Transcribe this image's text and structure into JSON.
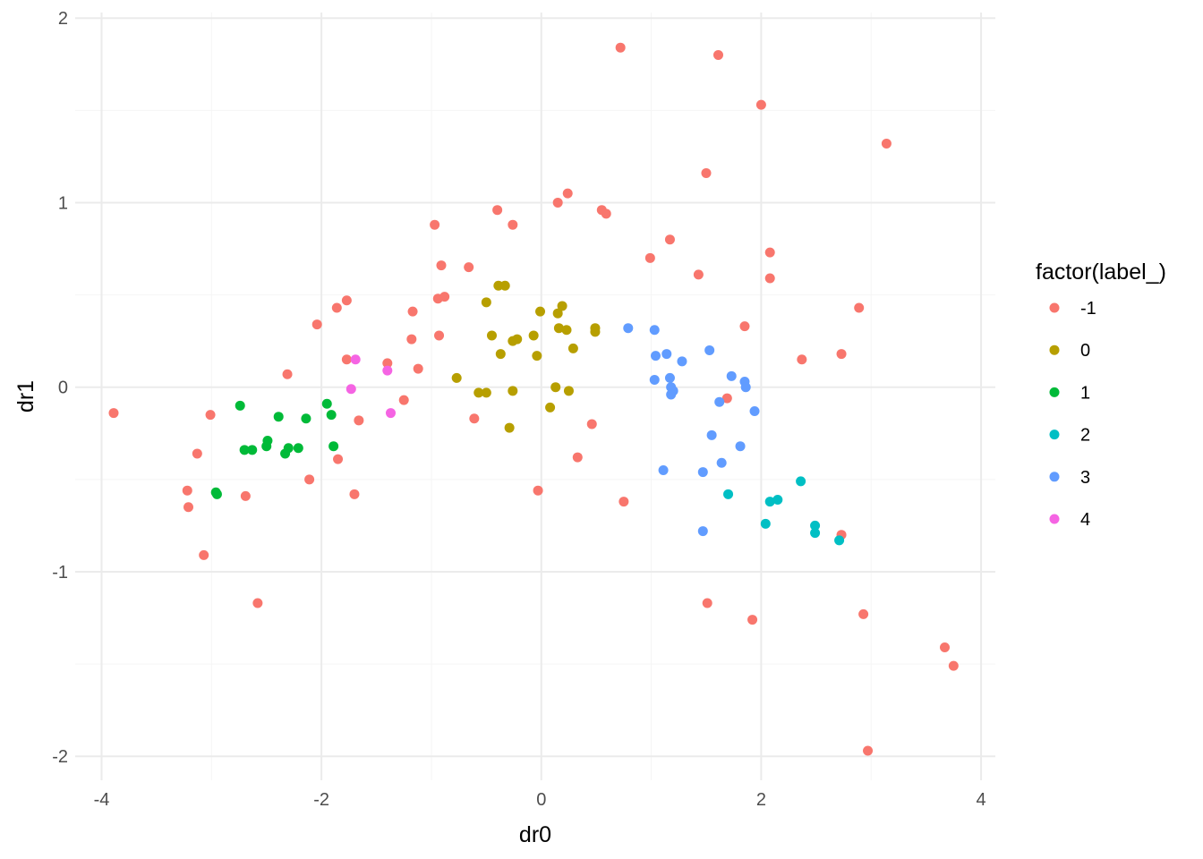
{
  "chart_data": {
    "type": "scatter",
    "title": "",
    "xlabel": "dr0",
    "ylabel": "dr1",
    "xlim": [
      -4.24,
      4.13
    ],
    "ylim": [
      -2.13,
      2.03
    ],
    "xticks": [
      -4,
      -2,
      0,
      2,
      4
    ],
    "yticks": [
      -2,
      -1,
      0,
      1,
      2
    ],
    "grid": true,
    "legend": {
      "title": "factor(label_)",
      "position": "right"
    },
    "series": [
      {
        "name": "-1",
        "color": "#F8766D",
        "points": [
          [
            0.72,
            1.84
          ],
          [
            1.61,
            1.8
          ],
          [
            2.0,
            1.53
          ],
          [
            3.14,
            1.32
          ],
          [
            1.5,
            1.16
          ],
          [
            0.24,
            1.05
          ],
          [
            0.15,
            1.0
          ],
          [
            -0.4,
            0.96
          ],
          [
            0.55,
            0.96
          ],
          [
            0.59,
            0.94
          ],
          [
            -0.97,
            0.88
          ],
          [
            -0.26,
            0.88
          ],
          [
            1.17,
            0.8
          ],
          [
            2.08,
            0.73
          ],
          [
            0.99,
            0.7
          ],
          [
            -0.91,
            0.66
          ],
          [
            -0.66,
            0.65
          ],
          [
            1.43,
            0.61
          ],
          [
            2.08,
            0.59
          ],
          [
            -0.94,
            0.48
          ],
          [
            -0.88,
            0.49
          ],
          [
            -1.77,
            0.47
          ],
          [
            -1.86,
            0.43
          ],
          [
            -1.17,
            0.41
          ],
          [
            2.89,
            0.43
          ],
          [
            -2.04,
            0.34
          ],
          [
            1.85,
            0.33
          ],
          [
            -1.18,
            0.26
          ],
          [
            -0.93,
            0.28
          ],
          [
            2.73,
            0.18
          ],
          [
            -1.77,
            0.15
          ],
          [
            2.37,
            0.15
          ],
          [
            -1.4,
            0.13
          ],
          [
            -1.12,
            0.1
          ],
          [
            -2.31,
            0.07
          ],
          [
            -1.25,
            -0.07
          ],
          [
            -3.89,
            -0.14
          ],
          [
            -3.01,
            -0.15
          ],
          [
            1.69,
            -0.06
          ],
          [
            -0.61,
            -0.17
          ],
          [
            -1.66,
            -0.18
          ],
          [
            0.46,
            -0.2
          ],
          [
            -3.13,
            -0.36
          ],
          [
            -1.85,
            -0.39
          ],
          [
            0.33,
            -0.38
          ],
          [
            -2.11,
            -0.5
          ],
          [
            -3.22,
            -0.56
          ],
          [
            -0.03,
            -0.56
          ],
          [
            -2.69,
            -0.59
          ],
          [
            -1.7,
            -0.58
          ],
          [
            -3.21,
            -0.65
          ],
          [
            0.75,
            -0.62
          ],
          [
            2.73,
            -0.8
          ],
          [
            -3.07,
            -0.91
          ],
          [
            -2.58,
            -1.17
          ],
          [
            1.51,
            -1.17
          ],
          [
            1.92,
            -1.26
          ],
          [
            2.93,
            -1.23
          ],
          [
            3.67,
            -1.41
          ],
          [
            3.75,
            -1.51
          ],
          [
            2.97,
            -1.97
          ]
        ]
      },
      {
        "name": "0",
        "color": "#B79F00",
        "points": [
          [
            -0.39,
            0.55
          ],
          [
            -0.33,
            0.55
          ],
          [
            0.19,
            0.44
          ],
          [
            -0.5,
            0.46
          ],
          [
            -0.01,
            0.41
          ],
          [
            0.15,
            0.4
          ],
          [
            0.49,
            0.32
          ],
          [
            0.16,
            0.32
          ],
          [
            0.49,
            0.3
          ],
          [
            0.23,
            0.31
          ],
          [
            -0.45,
            0.28
          ],
          [
            -0.07,
            0.28
          ],
          [
            -0.22,
            0.26
          ],
          [
            -0.26,
            0.25
          ],
          [
            0.29,
            0.21
          ],
          [
            -0.37,
            0.18
          ],
          [
            -0.04,
            0.17
          ],
          [
            -0.77,
            0.05
          ],
          [
            0.13,
            0.0
          ],
          [
            -0.57,
            -0.03
          ],
          [
            -0.5,
            -0.03
          ],
          [
            -0.26,
            -0.02
          ],
          [
            0.25,
            -0.02
          ],
          [
            0.08,
            -0.11
          ],
          [
            -0.29,
            -0.22
          ]
        ]
      },
      {
        "name": "1",
        "color": "#00BA38",
        "points": [
          [
            -2.74,
            -0.1
          ],
          [
            -1.95,
            -0.09
          ],
          [
            -2.39,
            -0.16
          ],
          [
            -1.91,
            -0.15
          ],
          [
            -2.14,
            -0.17
          ],
          [
            -2.49,
            -0.29
          ],
          [
            -2.5,
            -0.32
          ],
          [
            -1.89,
            -0.32
          ],
          [
            -2.7,
            -0.34
          ],
          [
            -2.63,
            -0.34
          ],
          [
            -2.3,
            -0.33
          ],
          [
            -2.21,
            -0.33
          ],
          [
            -2.33,
            -0.36
          ],
          [
            -2.96,
            -0.57
          ],
          [
            -2.95,
            -0.58
          ]
        ]
      },
      {
        "name": "2",
        "color": "#00BFC4",
        "points": [
          [
            2.36,
            -0.51
          ],
          [
            1.7,
            -0.58
          ],
          [
            2.15,
            -0.61
          ],
          [
            2.08,
            -0.62
          ],
          [
            2.04,
            -0.74
          ],
          [
            2.49,
            -0.75
          ],
          [
            2.49,
            -0.79
          ],
          [
            2.71,
            -0.83
          ]
        ]
      },
      {
        "name": "3",
        "color": "#619CFF",
        "points": [
          [
            0.79,
            0.32
          ],
          [
            1.03,
            0.31
          ],
          [
            1.14,
            0.18
          ],
          [
            1.04,
            0.17
          ],
          [
            1.53,
            0.2
          ],
          [
            1.28,
            0.14
          ],
          [
            1.03,
            0.04
          ],
          [
            1.17,
            0.05
          ],
          [
            1.73,
            0.06
          ],
          [
            1.85,
            0.03
          ],
          [
            1.86,
            0.0
          ],
          [
            1.18,
            0.0
          ],
          [
            1.2,
            -0.02
          ],
          [
            1.18,
            -0.04
          ],
          [
            1.62,
            -0.08
          ],
          [
            1.94,
            -0.13
          ],
          [
            1.55,
            -0.26
          ],
          [
            1.81,
            -0.32
          ],
          [
            1.64,
            -0.41
          ],
          [
            1.11,
            -0.45
          ],
          [
            1.47,
            -0.46
          ],
          [
            1.47,
            -0.78
          ]
        ]
      },
      {
        "name": "4",
        "color": "#F564E3",
        "points": [
          [
            -1.69,
            0.15
          ],
          [
            -1.4,
            0.09
          ],
          [
            -1.73,
            -0.01
          ],
          [
            -1.37,
            -0.14
          ]
        ]
      }
    ]
  }
}
